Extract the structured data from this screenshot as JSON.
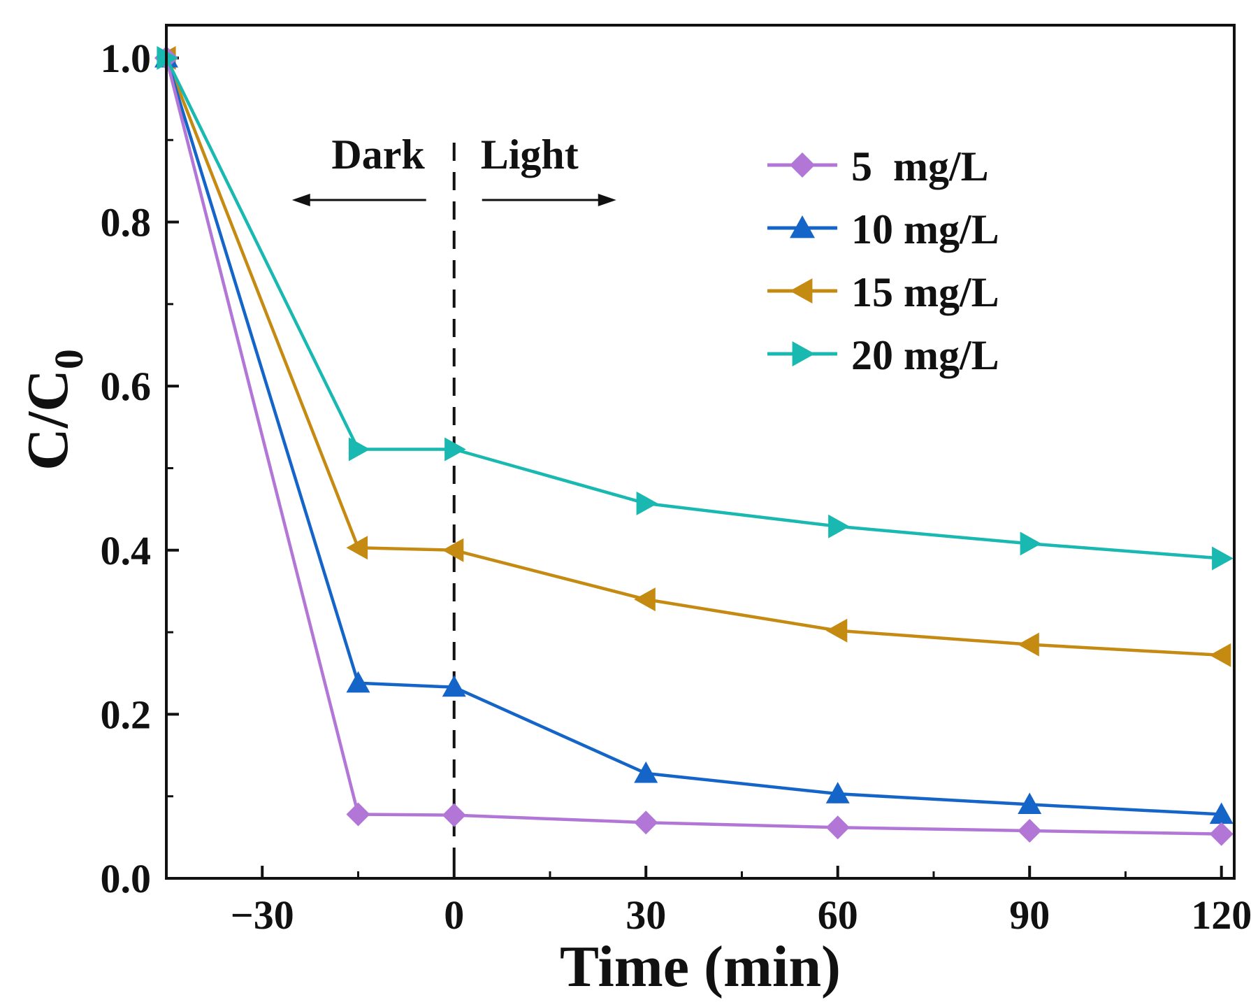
{
  "chart_data": {
    "type": "line",
    "xlabel": "Time (min)",
    "ylabel": "C/C",
    "ylabel_sub": "0",
    "xlim": [
      -45,
      122
    ],
    "ylim": [
      0.0,
      1.04
    ],
    "xticks": [
      -30,
      0,
      30,
      60,
      90,
      120
    ],
    "xtick_labels": [
      "−30",
      "0",
      "30",
      "60",
      "90",
      "120"
    ],
    "yticks": [
      0.0,
      0.2,
      0.4,
      0.6,
      0.8,
      1.0
    ],
    "ytick_labels": [
      "0.0",
      "0.2",
      "0.4",
      "0.6",
      "0.8",
      "1.0"
    ],
    "x": [
      -45,
      -15,
      0,
      30,
      60,
      90,
      120
    ],
    "series": [
      {
        "name": "5  mg/L",
        "color": "#b276d6",
        "marker": "diamond",
        "values": [
          1.0,
          0.078,
          0.077,
          0.068,
          0.062,
          0.058,
          0.054
        ]
      },
      {
        "name": "10 mg/L",
        "color": "#1565c8",
        "marker": "triangle-up",
        "values": [
          1.0,
          0.238,
          0.233,
          0.128,
          0.103,
          0.09,
          0.078
        ]
      },
      {
        "name": "15 mg/L",
        "color": "#c58a12",
        "marker": "triangle-left",
        "values": [
          1.0,
          0.403,
          0.4,
          0.34,
          0.302,
          0.285,
          0.272
        ]
      },
      {
        "name": "20 mg/L",
        "color": "#19b8b0",
        "marker": "triangle-right",
        "values": [
          1.0,
          0.523,
          0.523,
          0.457,
          0.429,
          0.408,
          0.39
        ]
      }
    ],
    "divider": {
      "x": 0,
      "style": "dashed"
    },
    "annotations": [
      {
        "text": "Dark",
        "arrow": "left"
      },
      {
        "text": "Light",
        "arrow": "right"
      }
    ],
    "legend": "top-right",
    "grid": false
  }
}
